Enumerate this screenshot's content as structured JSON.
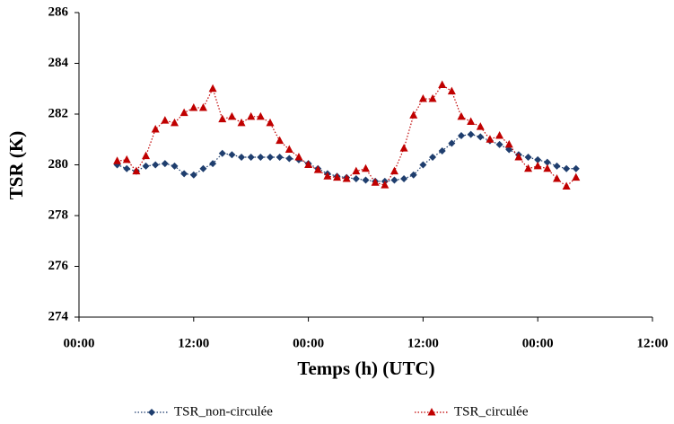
{
  "chart_data": {
    "type": "line",
    "xlabel": "Temps (h) (UTC)",
    "ylabel": "TSR (K)",
    "x": [
      4,
      5,
      6,
      7,
      8,
      9,
      10,
      11,
      12,
      13,
      14,
      15,
      16,
      17,
      18,
      19,
      20,
      21,
      22,
      23,
      24,
      25,
      26,
      27,
      28,
      29,
      30,
      31,
      32,
      33,
      34,
      35,
      36,
      37,
      38,
      39,
      40,
      41,
      42,
      43,
      44,
      45,
      46,
      47,
      48,
      49,
      50,
      51,
      52
    ],
    "series": [
      {
        "name": "TSR_non-circulée",
        "color": "#1f3e6e",
        "marker": "diamond",
        "values": [
          280.0,
          279.85,
          279.75,
          279.95,
          280.0,
          280.05,
          279.95,
          279.65,
          279.6,
          279.85,
          280.05,
          280.45,
          280.4,
          280.3,
          280.3,
          280.3,
          280.3,
          280.3,
          280.25,
          280.2,
          280.05,
          279.85,
          279.65,
          279.55,
          279.5,
          279.45,
          279.4,
          279.35,
          279.35,
          279.4,
          279.45,
          279.6,
          280.0,
          280.3,
          280.55,
          280.85,
          281.15,
          281.2,
          281.1,
          280.95,
          280.8,
          280.6,
          280.4,
          280.3,
          280.2,
          280.1,
          279.95,
          279.85,
          279.85
        ]
      },
      {
        "name": "TSR_circulée",
        "color": "#c00000",
        "marker": "triangle",
        "values": [
          280.15,
          280.2,
          279.75,
          280.35,
          281.4,
          281.75,
          281.65,
          282.05,
          282.25,
          282.25,
          283.0,
          281.8,
          281.9,
          281.65,
          281.9,
          281.9,
          281.65,
          280.95,
          280.6,
          280.3,
          280.0,
          279.8,
          279.55,
          279.5,
          279.45,
          279.75,
          279.85,
          279.3,
          279.2,
          279.75,
          280.65,
          281.95,
          282.6,
          282.6,
          283.15,
          282.9,
          281.9,
          281.7,
          281.5,
          281.0,
          281.15,
          280.8,
          280.3,
          279.85,
          279.95,
          279.85,
          279.45,
          279.15,
          279.5
        ]
      }
    ],
    "xlim": [
      0,
      60
    ],
    "xticks": [
      {
        "value": 0,
        "label": "00:00"
      },
      {
        "value": 12,
        "label": "12:00"
      },
      {
        "value": 24,
        "label": "00:00"
      },
      {
        "value": 36,
        "label": "12:00"
      },
      {
        "value": 48,
        "label": "00:00"
      },
      {
        "value": 60,
        "label": "12:00"
      }
    ],
    "ylim": [
      274,
      286
    ],
    "yticks": [
      274,
      276,
      278,
      280,
      282,
      284,
      286
    ],
    "grid": false,
    "legend": "bottom"
  }
}
